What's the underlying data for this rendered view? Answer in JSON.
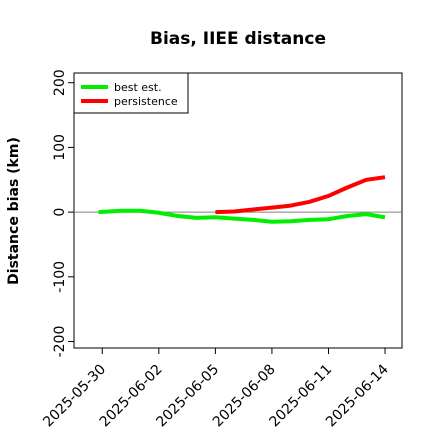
{
  "chart_data": {
    "type": "line",
    "title": "Bias, IIEE distance",
    "xlabel": "",
    "ylabel": "Distance bias (km)",
    "x_ticks": [
      "2025-05-30",
      "2025-06-02",
      "2025-06-05",
      "2025-06-08",
      "2025-06-11",
      "2025-06-14"
    ],
    "x_tick_days": [
      1.5,
      4.5,
      7.5,
      10.5,
      13.5,
      16.5
    ],
    "xlim": [
      0,
      17.4
    ],
    "y_ticks": [
      -200,
      -100,
      0,
      100,
      200
    ],
    "y_tick_labels": [
      "-200",
      "-100",
      "0",
      "100",
      "200"
    ],
    "ylim": [
      -210,
      215
    ],
    "zero_line": true,
    "legend_position": "top-left",
    "series": [
      {
        "name": "best est.",
        "color": "#00ee00",
        "x": [
          1.3,
          2.5,
          3.5,
          4.5,
          5.5,
          6.5,
          7.5,
          8.5,
          9.5,
          10.5,
          11.5,
          12.5,
          13.5,
          14.5,
          15.5,
          16.5
        ],
        "y": [
          0,
          2,
          2,
          -1,
          -6,
          -9,
          -8,
          -10,
          -12,
          -15,
          -14,
          -12,
          -11,
          -6,
          -3,
          -8
        ]
      },
      {
        "name": "persistence",
        "color": "#ff0000",
        "x": [
          7.5,
          8.5,
          9.5,
          10.5,
          11.5,
          12.5,
          13.5,
          14.5,
          15.5,
          16.5
        ],
        "y": [
          0,
          1,
          4,
          7,
          10,
          16,
          25,
          38,
          50,
          54
        ]
      }
    ]
  }
}
